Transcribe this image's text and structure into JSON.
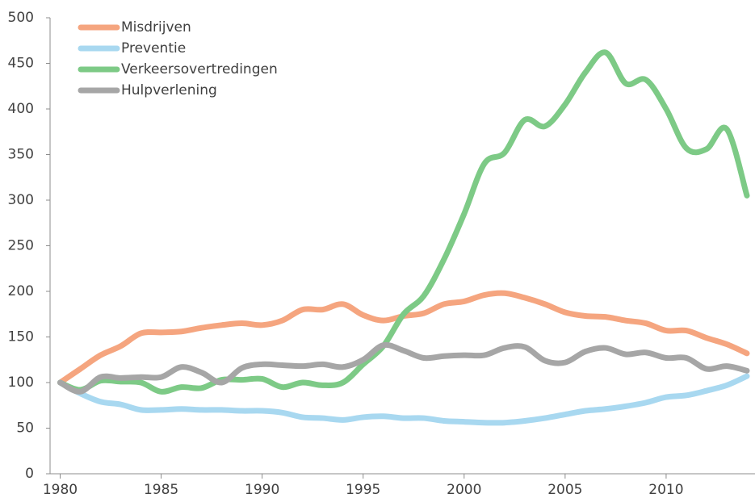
{
  "chart_data": {
    "type": "line",
    "x": [
      1980,
      1981,
      1982,
      1983,
      1984,
      1985,
      1986,
      1987,
      1988,
      1989,
      1990,
      1991,
      1992,
      1993,
      1994,
      1995,
      1996,
      1997,
      1998,
      1999,
      2000,
      2001,
      2002,
      2003,
      2004,
      2005,
      2006,
      2007,
      2008,
      2009,
      2010,
      2011,
      2012,
      2013,
      2014
    ],
    "series": [
      {
        "name": "Misdrijven",
        "color": "#f5a57f",
        "values": [
          100,
          115,
          130,
          140,
          154,
          155,
          156,
          160,
          163,
          165,
          163,
          168,
          180,
          180,
          186,
          174,
          168,
          173,
          176,
          186,
          189,
          196,
          198,
          193,
          186,
          177,
          173,
          172,
          168,
          165,
          157,
          157,
          149,
          142,
          132
        ]
      },
      {
        "name": "Preventie",
        "color": "#a8d8f0",
        "values": [
          100,
          88,
          79,
          76,
          70,
          70,
          71,
          70,
          70,
          69,
          69,
          67,
          62,
          61,
          59,
          62,
          63,
          61,
          61,
          58,
          57,
          56,
          56,
          58,
          61,
          65,
          69,
          71,
          74,
          78,
          84,
          86,
          91,
          97,
          107
        ]
      },
      {
        "name": "Verkeersovertredingen",
        "color": "#7dca86",
        "values": [
          100,
          92,
          102,
          101,
          100,
          90,
          95,
          94,
          103,
          103,
          104,
          95,
          100,
          97,
          100,
          120,
          140,
          175,
          195,
          235,
          285,
          340,
          352,
          388,
          381,
          405,
          440,
          462,
          428,
          432,
          400,
          357,
          356,
          378,
          305
        ]
      },
      {
        "name": "Hulpverlening",
        "color": "#a6a6a6",
        "values": [
          100,
          90,
          106,
          105,
          106,
          106,
          117,
          111,
          100,
          116,
          120,
          119,
          118,
          120,
          117,
          125,
          141,
          135,
          127,
          129,
          130,
          130,
          138,
          139,
          124,
          122,
          134,
          138,
          131,
          133,
          127,
          127,
          115,
          118,
          113
        ]
      }
    ],
    "xlim": [
      1979.5,
      2014.4
    ],
    "xticks": [
      1980,
      1985,
      1990,
      1995,
      2000,
      2005,
      2010
    ],
    "ylim": [
      0,
      500
    ],
    "yticks": [
      0,
      50,
      100,
      150,
      200,
      250,
      300,
      350,
      400,
      450,
      500
    ],
    "legend": "top-left"
  }
}
